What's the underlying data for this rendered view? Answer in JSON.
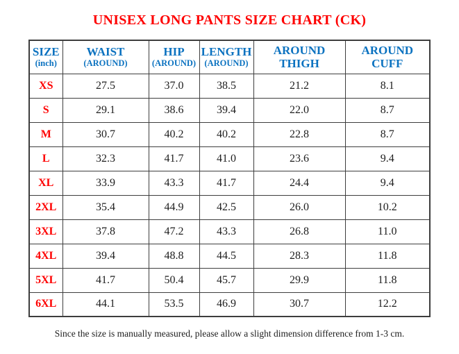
{
  "title": "UNISEX LONG PANTS SIZE CHART (CK)",
  "colors": {
    "title_red": "#fe0000",
    "header_blue": "#0b72c0",
    "size_label_red": "#fe0000",
    "value_black": "#1d1d1d",
    "border_gray": "#3d3d3d"
  },
  "table": {
    "headers": [
      {
        "line1": "SIZE",
        "line2": "(inch)",
        "small": true
      },
      {
        "line1": "WAIST",
        "line2": "(AROUND)",
        "small": true
      },
      {
        "line1": "HIP",
        "line2": "(AROUND)",
        "small": true
      },
      {
        "line1": "LENGTH",
        "line2": "(AROUND)",
        "small": true
      },
      {
        "line1": "AROUND",
        "line2": "THIGH",
        "small": false
      },
      {
        "line1": "AROUND",
        "line2": "CUFF",
        "small": false
      }
    ],
    "rows": [
      [
        "XS",
        "27.5",
        "37.0",
        "38.5",
        "21.2",
        "8.1"
      ],
      [
        "S",
        "29.1",
        "38.6",
        "39.4",
        "22.0",
        "8.7"
      ],
      [
        "M",
        "30.7",
        "40.2",
        "40.2",
        "22.8",
        "8.7"
      ],
      [
        "L",
        "32.3",
        "41.7",
        "41.0",
        "23.6",
        "9.4"
      ],
      [
        "XL",
        "33.9",
        "43.3",
        "41.7",
        "24.4",
        "9.4"
      ],
      [
        "2XL",
        "35.4",
        "44.9",
        "42.5",
        "26.0",
        "10.2"
      ],
      [
        "3XL",
        "37.8",
        "47.2",
        "43.3",
        "26.8",
        "11.0"
      ],
      [
        "4XL",
        "39.4",
        "48.8",
        "44.5",
        "28.3",
        "11.8"
      ],
      [
        "5XL",
        "41.7",
        "50.4",
        "45.7",
        "29.9",
        "11.8"
      ],
      [
        "6XL",
        "44.1",
        "53.5",
        "46.9",
        "30.7",
        "12.2"
      ]
    ]
  },
  "footer_note": "Since the size is manually measured, please allow a slight dimension difference from 1-3 cm."
}
